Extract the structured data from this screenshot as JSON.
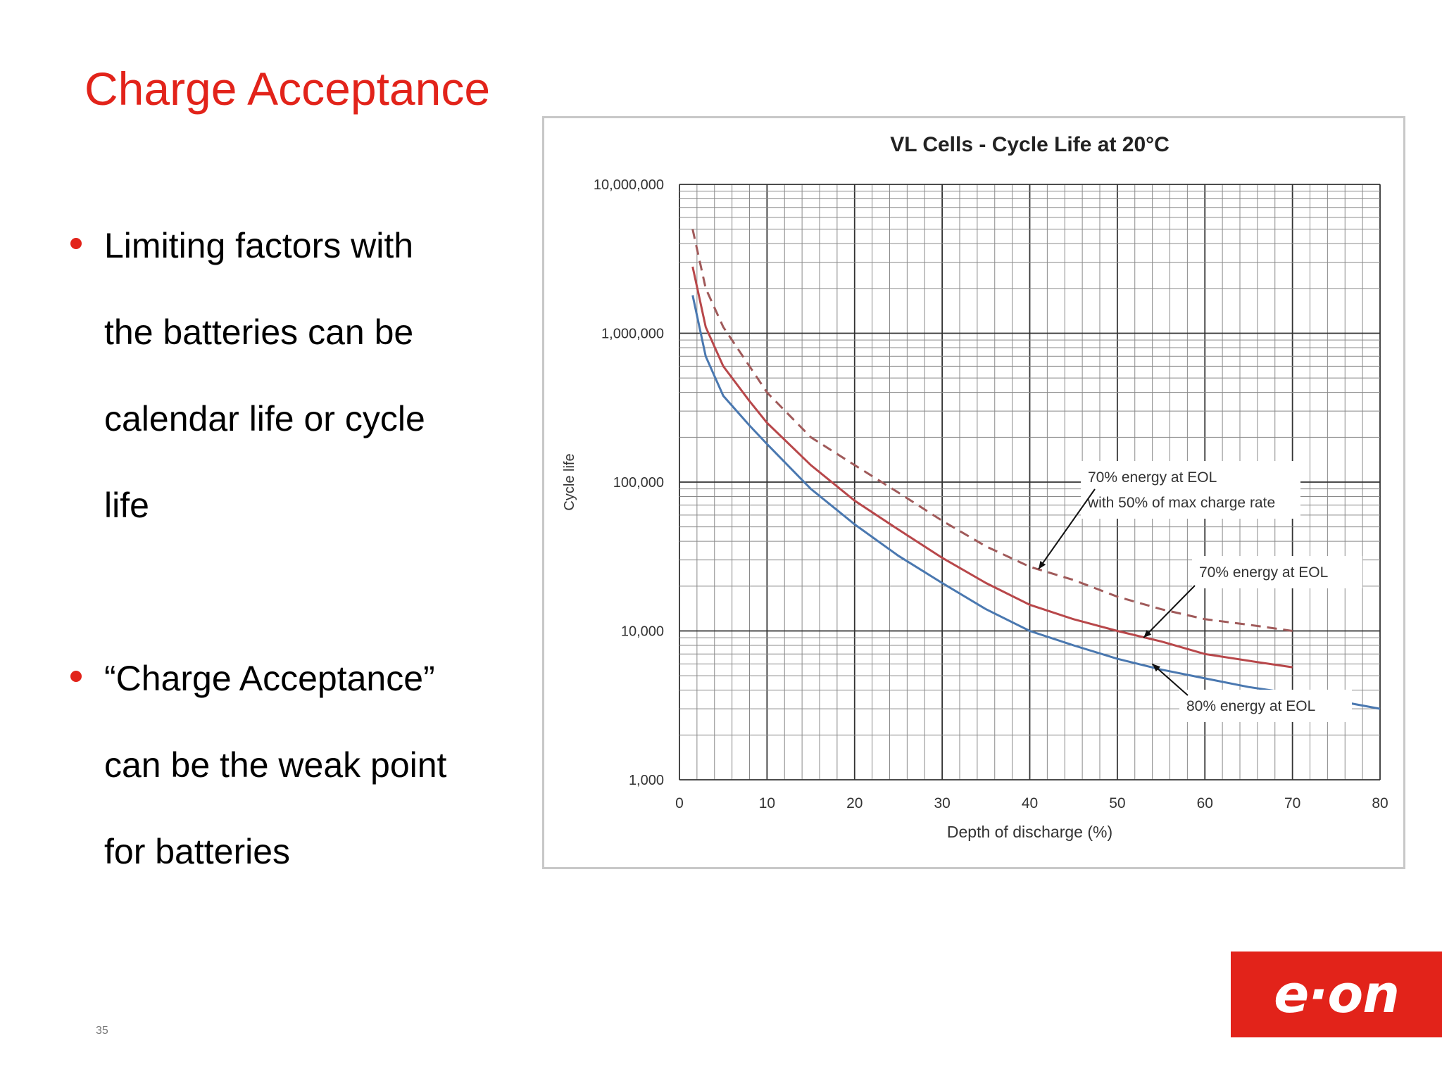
{
  "slide": {
    "title": "Charge Acceptance",
    "page_number": "35",
    "bullets": [
      {
        "lines": [
          "Limiting factors with",
          "the batteries can be",
          "calendar life or cycle",
          "life"
        ]
      },
      {
        "lines": [
          "“Charge Acceptance”",
          "can be the weak point",
          "for batteries"
        ]
      }
    ],
    "logo_text": "e·on",
    "accent_color": "#e2231a"
  },
  "chart_data": {
    "type": "line",
    "title": "VL Cells - Cycle Life at 20°C",
    "xlabel": "Depth of discharge (%)",
    "ylabel": "Cycle life",
    "xlim": [
      0,
      80
    ],
    "ylim": [
      1000,
      10000000
    ],
    "yscale": "log",
    "grid": true,
    "x_ticks": [
      "0",
      "10",
      "20",
      "30",
      "40",
      "50",
      "60",
      "70",
      "80"
    ],
    "y_ticks": [
      "1,000",
      "10,000",
      "100,000",
      "1,000,000",
      "10,000,000"
    ],
    "series": [
      {
        "name": "70% energy at EOL with 50% of max charge rate",
        "color": "#a05a5a",
        "dash": true,
        "x": [
          1.5,
          3,
          5,
          8,
          10,
          15,
          20,
          25,
          30,
          35,
          40,
          45,
          50,
          55,
          60,
          65,
          70
        ],
        "y": [
          5000000,
          2000000,
          1100000,
          600000,
          400000,
          200000,
          130000,
          85000,
          55000,
          37000,
          27000,
          22000,
          17000,
          14000,
          12000,
          11000,
          10000
        ]
      },
      {
        "name": "70% energy at EOL",
        "color": "#b8474a",
        "dash": false,
        "x": [
          1.5,
          3,
          5,
          8,
          10,
          15,
          20,
          25,
          30,
          35,
          40,
          45,
          50,
          55,
          60,
          65,
          70
        ],
        "y": [
          2800000,
          1100000,
          600000,
          350000,
          250000,
          130000,
          75000,
          48000,
          31000,
          21000,
          15000,
          12000,
          10000,
          8500,
          7000,
          6300,
          5700
        ]
      },
      {
        "name": "80% energy at EOL",
        "color": "#4a78b0",
        "dash": false,
        "x": [
          1.5,
          3,
          5,
          8,
          10,
          15,
          20,
          25,
          30,
          35,
          40,
          45,
          50,
          55,
          60,
          65,
          70,
          75,
          80
        ],
        "y": [
          1800000,
          700000,
          380000,
          240000,
          180000,
          90000,
          52000,
          32000,
          21000,
          14000,
          10000,
          8000,
          6500,
          5500,
          4800,
          4200,
          3800,
          3400,
          3000
        ]
      }
    ],
    "annotations": [
      {
        "lines": [
          "70% energy at EOL",
          "with 50% of max charge rate"
        ],
        "points_to_x": 41,
        "points_to_y": 26000
      },
      {
        "lines": [
          "70% energy at EOL"
        ],
        "points_to_x": 53,
        "points_to_y": 9000
      },
      {
        "lines": [
          "80% energy at EOL"
        ],
        "points_to_x": 54,
        "points_to_y": 6000
      }
    ]
  }
}
